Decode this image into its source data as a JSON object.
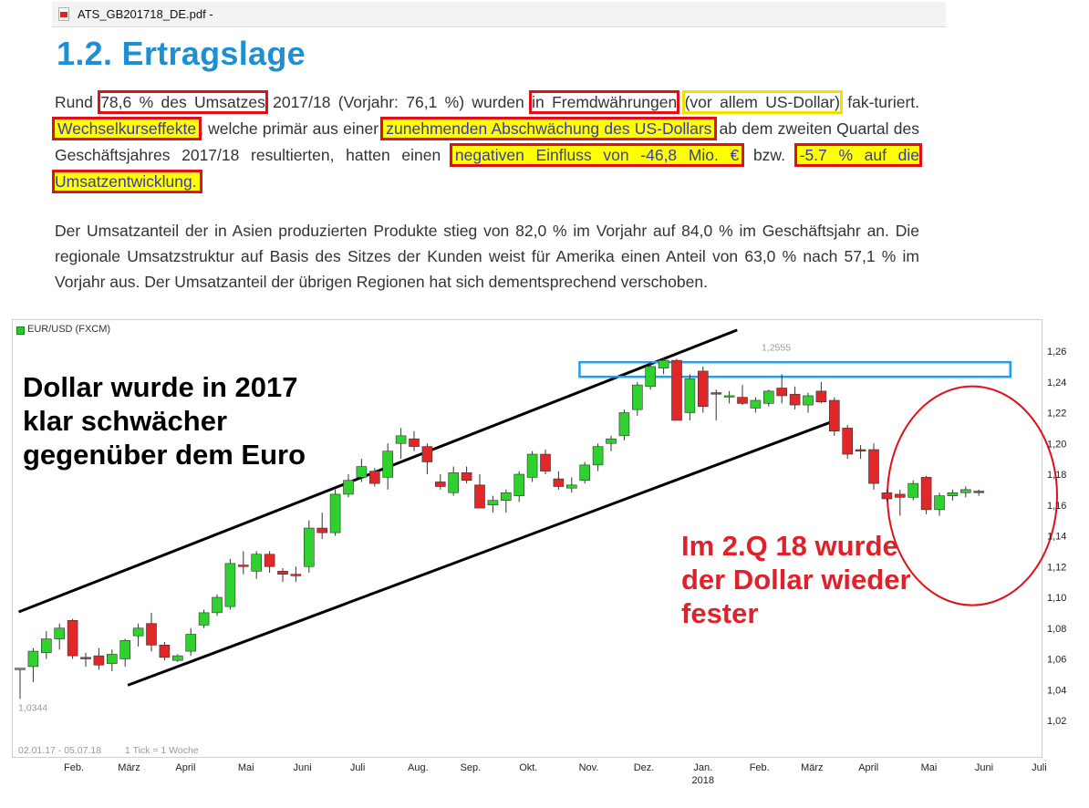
{
  "window": {
    "title": "ATS_GB201718_DE.pdf -"
  },
  "document": {
    "heading": "1.2. Ertragslage",
    "p1": [
      {
        "t": "Rund ",
        "s": ""
      },
      {
        "t": "78,6 % des Umsatzes",
        "s": "red"
      },
      {
        "t": " 2017/18 (Vorjahr: 76,1 %) wurden ",
        "s": ""
      },
      {
        "t": "in Fremdwährungen",
        "s": "red"
      },
      {
        "t": " ",
        "s": ""
      },
      {
        "t": "(vor allem US-Dollar)",
        "s": "yelbox"
      },
      {
        "t": " fak-turiert. ",
        "s": ""
      },
      {
        "t": "Wechselkurseffekte",
        "s": "hl"
      },
      {
        "t": ", welche primär aus einer ",
        "s": ""
      },
      {
        "t": "zunehmenden Abschwächung des US-Dollars",
        "s": "hl"
      },
      {
        "t": " ab dem zweiten Quartal des Geschäftsjahres 2017/18 resultierten, hatten einen ",
        "s": ""
      },
      {
        "t": "negativen Einfluss von -46,8 Mio. €",
        "s": "hl"
      },
      {
        "t": " bzw. ",
        "s": ""
      },
      {
        "t": "-5.7 % auf die Umsatzentwicklung.",
        "s": "hl"
      }
    ],
    "p2": "Der Umsatzanteil der in Asien produzierten Produkte stieg von 82,0 % im Vorjahr auf 84,0 % im Geschäftsjahr an. Die regionale Umsatzstruktur auf Basis des Sitzes der Kunden weist für Amerika einen Anteil von 63,0 % nach 57,1 % im Vorjahr aus. Der Umsatzanteil der übrigen Regionen hat sich dementsprechend verschoben."
  },
  "chart_data": {
    "type": "candlestick",
    "symbol": "EUR/USD (FXCM)",
    "range_label": "02.01.17 - 05.07.18",
    "tick_label": "1 Tick = 1 Woche",
    "max_label": "1,2555",
    "min_label": "1,0344",
    "ylim": [
      1.0,
      1.265
    ],
    "y_ticks": [
      "1,26",
      "1,24",
      "1,22",
      "1,20",
      "1,18",
      "1,16",
      "1,14",
      "1,12",
      "1,10",
      "1,08",
      "1,06",
      "1,04",
      "1,02"
    ],
    "x_labels": [
      {
        "label": "Feb.",
        "week": 4.1
      },
      {
        "label": "März",
        "week": 8.3
      },
      {
        "label": "April",
        "week": 12.6
      },
      {
        "label": "Mai",
        "week": 17.2
      },
      {
        "label": "Juni",
        "week": 21.5
      },
      {
        "label": "Juli",
        "week": 25.7
      },
      {
        "label": "Aug.",
        "week": 30.3
      },
      {
        "label": "Sep.",
        "week": 34.3
      },
      {
        "label": "Okt.",
        "week": 38.7
      },
      {
        "label": "Nov.",
        "week": 43.3
      },
      {
        "label": "Dez.",
        "week": 47.5
      },
      {
        "label": "Jan.",
        "week": 52.0,
        "sub": "2018"
      },
      {
        "label": "Feb.",
        "week": 56.3
      },
      {
        "label": "März",
        "week": 60.3
      },
      {
        "label": "April",
        "week": 64.6
      },
      {
        "label": "Mai",
        "week": 69.2
      },
      {
        "label": "Juni",
        "week": 73.4
      },
      {
        "label": "Juli",
        "week": 77.6
      }
    ],
    "candles": [
      [
        1.053,
        1.054,
        1.034,
        1.054
      ],
      [
        1.055,
        1.067,
        1.045,
        1.065
      ],
      [
        1.064,
        1.078,
        1.06,
        1.073
      ],
      [
        1.073,
        1.083,
        1.066,
        1.08
      ],
      [
        1.085,
        1.086,
        1.06,
        1.062
      ],
      [
        1.061,
        1.064,
        1.055,
        1.06
      ],
      [
        1.062,
        1.067,
        1.053,
        1.056
      ],
      [
        1.057,
        1.066,
        1.052,
        1.063
      ],
      [
        1.06,
        1.073,
        1.055,
        1.072
      ],
      [
        1.075,
        1.083,
        1.068,
        1.08
      ],
      [
        1.083,
        1.09,
        1.065,
        1.069
      ],
      [
        1.069,
        1.071,
        1.059,
        1.061
      ],
      [
        1.059,
        1.063,
        1.058,
        1.062
      ],
      [
        1.065,
        1.08,
        1.062,
        1.076
      ],
      [
        1.082,
        1.092,
        1.08,
        1.09
      ],
      [
        1.09,
        1.102,
        1.088,
        1.1
      ],
      [
        1.094,
        1.125,
        1.092,
        1.122
      ],
      [
        1.121,
        1.13,
        1.115,
        1.12
      ],
      [
        1.117,
        1.13,
        1.112,
        1.128
      ],
      [
        1.128,
        1.13,
        1.116,
        1.12
      ],
      [
        1.117,
        1.119,
        1.11,
        1.115
      ],
      [
        1.115,
        1.12,
        1.11,
        1.114
      ],
      [
        1.12,
        1.15,
        1.116,
        1.145
      ],
      [
        1.145,
        1.155,
        1.138,
        1.142
      ],
      [
        1.142,
        1.17,
        1.14,
        1.167
      ],
      [
        1.167,
        1.18,
        1.165,
        1.176
      ],
      [
        1.178,
        1.19,
        1.175,
        1.185
      ],
      [
        1.182,
        1.184,
        1.172,
        1.174
      ],
      [
        1.178,
        1.2,
        1.17,
        1.195
      ],
      [
        1.2,
        1.21,
        1.19,
        1.205
      ],
      [
        1.203,
        1.208,
        1.195,
        1.198
      ],
      [
        1.198,
        1.2,
        1.18,
        1.188
      ],
      [
        1.175,
        1.18,
        1.17,
        1.172
      ],
      [
        1.168,
        1.185,
        1.166,
        1.181
      ],
      [
        1.181,
        1.185,
        1.174,
        1.176
      ],
      [
        1.173,
        1.18,
        1.16,
        1.158
      ],
      [
        1.16,
        1.166,
        1.155,
        1.163
      ],
      [
        1.163,
        1.17,
        1.155,
        1.168
      ],
      [
        1.166,
        1.182,
        1.162,
        1.18
      ],
      [
        1.178,
        1.195,
        1.175,
        1.193
      ],
      [
        1.193,
        1.196,
        1.18,
        1.182
      ],
      [
        1.177,
        1.182,
        1.17,
        1.172
      ],
      [
        1.171,
        1.178,
        1.168,
        1.173
      ],
      [
        1.176,
        1.188,
        1.174,
        1.186
      ],
      [
        1.186,
        1.2,
        1.182,
        1.198
      ],
      [
        1.2,
        1.205,
        1.195,
        1.203
      ],
      [
        1.205,
        1.222,
        1.202,
        1.22
      ],
      [
        1.222,
        1.24,
        1.218,
        1.238
      ],
      [
        1.237,
        1.253,
        1.235,
        1.25
      ],
      [
        1.249,
        1.256,
        1.245,
        1.254
      ],
      [
        1.254,
        1.255,
        1.215,
        1.215
      ],
      [
        1.22,
        1.245,
        1.215,
        1.242
      ],
      [
        1.247,
        1.25,
        1.22,
        1.224
      ],
      [
        1.233,
        1.235,
        1.215,
        1.232
      ],
      [
        1.231,
        1.234,
        1.226,
        1.231
      ],
      [
        1.23,
        1.238,
        1.225,
        1.226
      ],
      [
        1.223,
        1.23,
        1.22,
        1.228
      ],
      [
        1.226,
        1.235,
        1.224,
        1.234
      ],
      [
        1.236,
        1.245,
        1.226,
        1.231
      ],
      [
        1.232,
        1.237,
        1.222,
        1.225
      ],
      [
        1.225,
        1.233,
        1.22,
        1.231
      ],
      [
        1.234,
        1.24,
        1.226,
        1.227
      ],
      [
        1.228,
        1.23,
        1.205,
        1.208
      ],
      [
        1.21,
        1.212,
        1.19,
        1.193
      ],
      [
        1.196,
        1.199,
        1.19,
        1.195
      ],
      [
        1.196,
        1.2,
        1.17,
        1.174
      ],
      [
        1.168,
        1.17,
        1.162,
        1.164
      ],
      [
        1.167,
        1.17,
        1.153,
        1.165
      ],
      [
        1.165,
        1.176,
        1.163,
        1.174
      ],
      [
        1.178,
        1.179,
        1.154,
        1.157
      ],
      [
        1.157,
        1.168,
        1.153,
        1.166
      ],
      [
        1.166,
        1.17,
        1.163,
        1.168
      ],
      [
        1.168,
        1.172,
        1.165,
        1.17
      ],
      [
        1.169,
        1.17,
        1.166,
        1.168
      ]
    ],
    "annotations": [
      "Dollar wurde in 2017\nklar schwächer\ngegenüber dem Euro",
      "Im 2.Q 18 wurde\nder Dollar wieder\nfester"
    ],
    "colors": {
      "up": "#2ed12e",
      "down": "#e02828",
      "upper_channel": "#000000",
      "resistance_box": "#2a9de0",
      "ellipse": "#e0101a",
      "annotation_red": "#e0202a"
    }
  }
}
